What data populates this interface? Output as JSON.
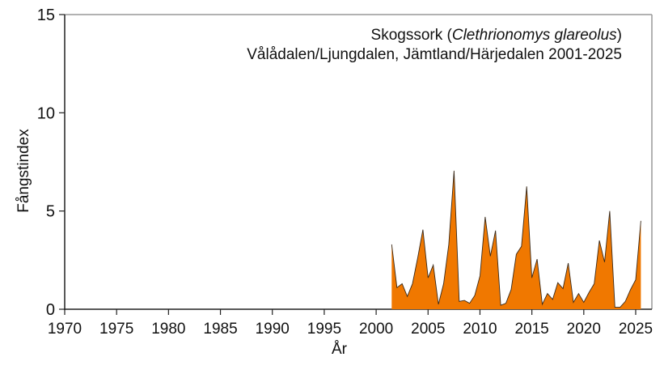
{
  "chart_data": {
    "type": "area",
    "title": "Skogssork (Clethrionomys glareolus)",
    "title_parts": {
      "common": "Skogssork",
      "latin": "Clethrionomys glareolus"
    },
    "subtitle": "Vålådalen/Ljungdalen, Jämtland/Härjedalen 2001-2025",
    "xlabel": "År",
    "ylabel": "Fångstindex",
    "xlim": [
      1970,
      2026
    ],
    "ylim": [
      0,
      15
    ],
    "xticks": [
      1970,
      1975,
      1980,
      1985,
      1990,
      1995,
      2000,
      2005,
      2010,
      2015,
      2020,
      2025
    ],
    "yticks": [
      0,
      5,
      10,
      15
    ],
    "grid": false,
    "fill_color": "#f07800",
    "line_color": "#3a2a1a",
    "x": [
      2001.5,
      2002.0,
      2002.5,
      2003.0,
      2003.5,
      2004.0,
      2004.5,
      2005.0,
      2005.5,
      2006.0,
      2006.5,
      2007.0,
      2007.5,
      2008.0,
      2008.5,
      2009.0,
      2009.5,
      2010.0,
      2010.5,
      2011.0,
      2011.5,
      2012.0,
      2012.5,
      2013.0,
      2013.5,
      2014.0,
      2014.5,
      2015.0,
      2015.5,
      2016.0,
      2016.5,
      2017.0,
      2017.5,
      2018.0,
      2018.5,
      2019.0,
      2019.5,
      2020.0,
      2020.5,
      2021.0,
      2021.5,
      2022.0,
      2022.5,
      2023.0,
      2023.5,
      2024.0,
      2024.5,
      2025.0,
      2025.5
    ],
    "values": [
      3.3,
      1.1,
      1.3,
      0.65,
      1.3,
      2.6,
      4.05,
      1.6,
      2.25,
      0.25,
      1.3,
      3.3,
      7.05,
      0.4,
      0.45,
      0.3,
      0.7,
      1.7,
      4.7,
      2.7,
      4.0,
      0.2,
      0.3,
      1.0,
      2.8,
      3.2,
      6.25,
      1.6,
      2.55,
      0.25,
      0.8,
      0.5,
      1.35,
      1.05,
      2.35,
      0.35,
      0.8,
      0.35,
      0.85,
      1.3,
      3.5,
      2.4,
      5.0,
      0.1,
      0.1,
      0.4,
      1.0,
      1.5,
      4.5
    ]
  }
}
